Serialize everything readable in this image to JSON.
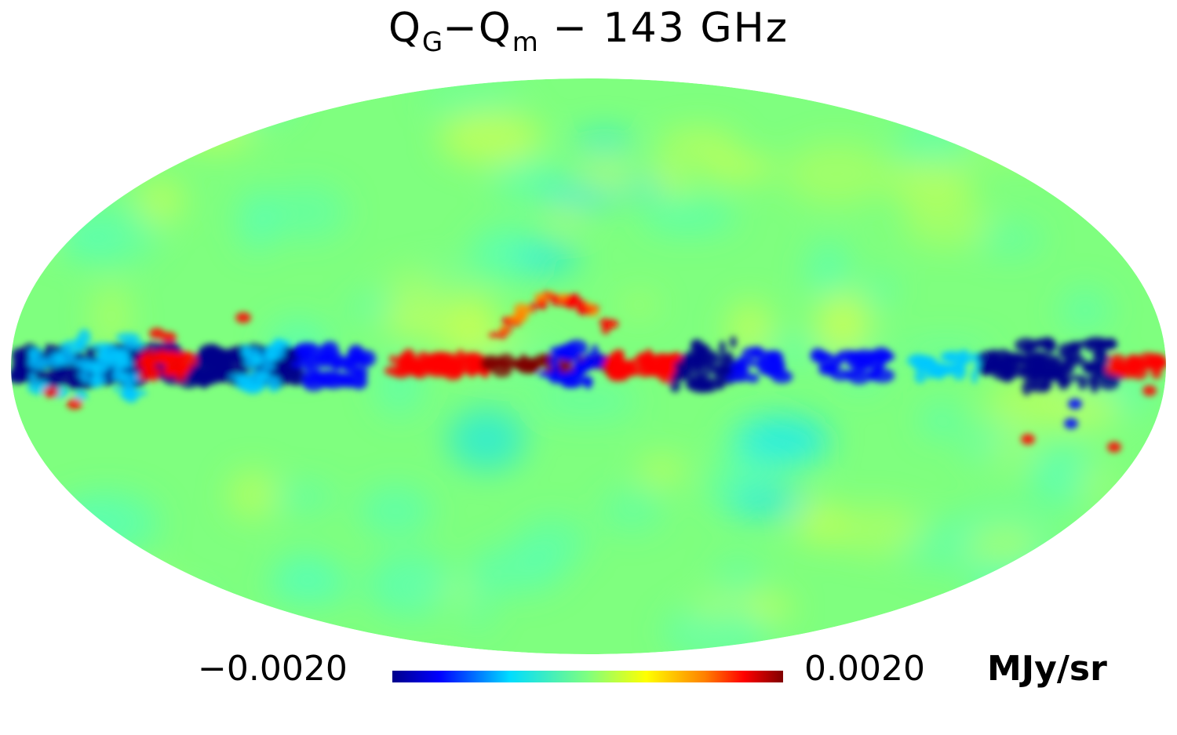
{
  "title": {
    "q1": "Q",
    "q1_sub": "G",
    "minus": "−",
    "q2": "Q",
    "q2_sub": "m",
    "rest": " − 143 GHz"
  },
  "map": {
    "projection": "mollweide",
    "colormap": [
      "#00008b",
      "#0000ff",
      "#00c8ff",
      "#00ffff",
      "#7fff7f",
      "#ffff00",
      "#ff9000",
      "#ff0000",
      "#800000"
    ]
  },
  "colorbar": {
    "min_label": "−0.0020",
    "max_label": "0.0020",
    "unit": "MJy/sr",
    "min": -0.002,
    "max": 0.002
  }
}
